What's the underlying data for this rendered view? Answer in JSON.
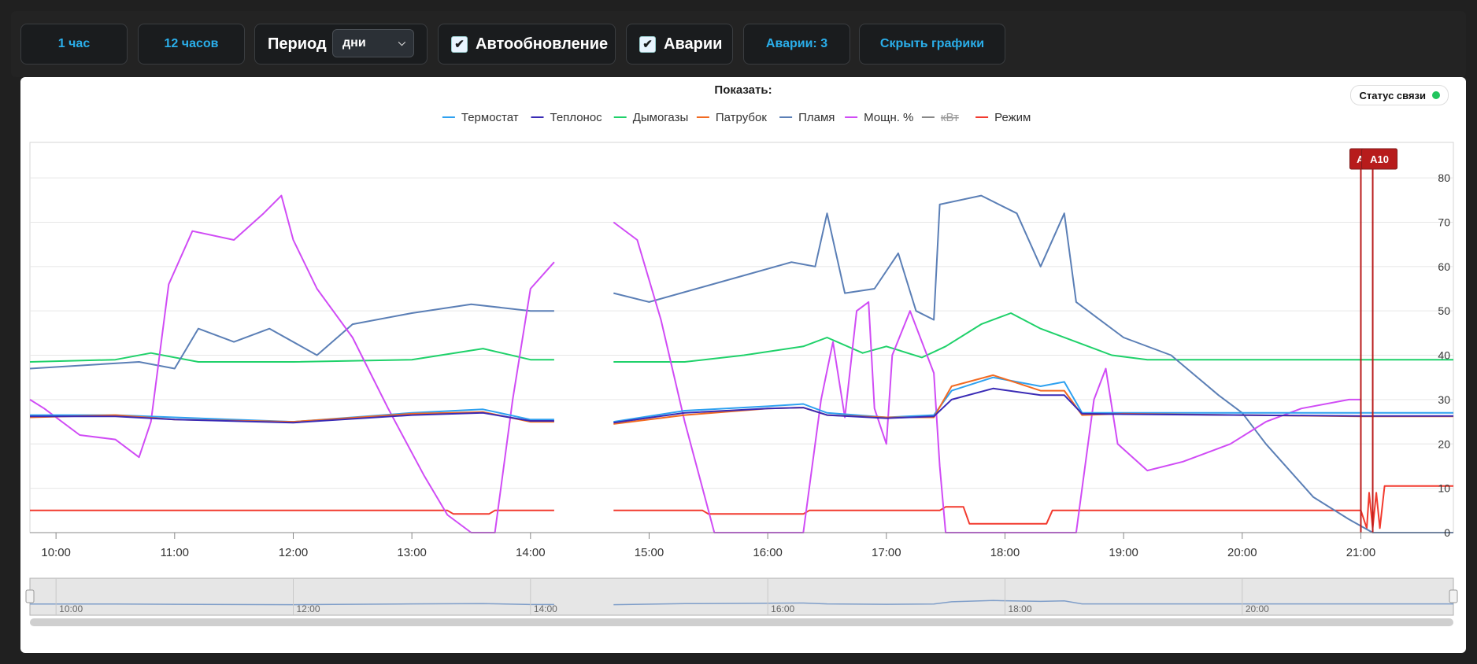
{
  "toolbar": {
    "btn_1h": "1 час",
    "btn_12h": "12 часов",
    "period_label": "Период",
    "period_value": "дни",
    "autoupdate_label": "Автообновление",
    "alarms_label": "Аварии",
    "alarms_count_label": "Аварии: 3",
    "hide_charts_label": "Скрыть графики"
  },
  "panel": {
    "show_label": "Показать:",
    "status_label": "Статус связи",
    "status_color": "#22c55e"
  },
  "chart_data": {
    "type": "line",
    "x_range_hours": [
      9.78,
      21.78
    ],
    "ylim": [
      0,
      88
    ],
    "y_ticks": [
      "0",
      "10",
      "20",
      "30",
      "40",
      "50",
      "60",
      "70",
      "80"
    ],
    "x_ticks": [
      {
        "h": 10,
        "label": "10:00"
      },
      {
        "h": 11,
        "label": "11:00"
      },
      {
        "h": 12,
        "label": "12:00"
      },
      {
        "h": 13,
        "label": "13:00"
      },
      {
        "h": 14,
        "label": "14:00"
      },
      {
        "h": 15,
        "label": "15:00"
      },
      {
        "h": 16,
        "label": "16:00"
      },
      {
        "h": 17,
        "label": "17:00"
      },
      {
        "h": 18,
        "label": "18:00"
      },
      {
        "h": 19,
        "label": "19:00"
      },
      {
        "h": 20,
        "label": "20:00"
      },
      {
        "h": 21,
        "label": "21:00"
      }
    ],
    "navigator_ticks": [
      "10:00",
      "12:00",
      "14:00",
      "16:00",
      "18:00",
      "20:00"
    ],
    "legend_position": "top-center",
    "series": [
      {
        "name": "Термостат",
        "color": "#2ea1f0",
        "hidden": false,
        "points": [
          [
            9.78,
            26.5
          ],
          [
            10.5,
            26.5
          ],
          [
            11,
            26
          ],
          [
            12,
            25
          ],
          [
            13,
            27
          ],
          [
            13.6,
            27.8
          ],
          [
            14,
            25.5
          ],
          [
            14.2,
            25.5
          ],
          null,
          [
            14.7,
            25
          ],
          [
            15.3,
            27.5
          ],
          [
            16,
            28.5
          ],
          [
            16.3,
            29
          ],
          [
            16.5,
            27
          ],
          [
            17,
            26
          ],
          [
            17.4,
            26.5
          ],
          [
            17.55,
            32
          ],
          [
            17.9,
            35
          ],
          [
            18.3,
            33
          ],
          [
            18.5,
            34
          ],
          [
            18.65,
            27
          ],
          [
            19,
            27
          ],
          [
            20,
            27
          ],
          [
            21,
            27
          ],
          [
            21.78,
            27
          ]
        ]
      },
      {
        "name": "Теплонос",
        "color": "#3a2bb5",
        "hidden": false,
        "points": [
          [
            9.78,
            26.2
          ],
          [
            10.5,
            26.2
          ],
          [
            11,
            25.5
          ],
          [
            12,
            24.8
          ],
          [
            13,
            26.5
          ],
          [
            13.6,
            27
          ],
          [
            14,
            25.2
          ],
          [
            14.2,
            25.2
          ],
          null,
          [
            14.7,
            24.8
          ],
          [
            15.3,
            27
          ],
          [
            16,
            28
          ],
          [
            16.3,
            28.2
          ],
          [
            16.5,
            26.5
          ],
          [
            17,
            25.8
          ],
          [
            17.4,
            26.2
          ],
          [
            17.55,
            30
          ],
          [
            17.9,
            32.5
          ],
          [
            18.3,
            31
          ],
          [
            18.5,
            31
          ],
          [
            18.65,
            26.8
          ],
          [
            19,
            26.7
          ],
          [
            20,
            26.5
          ],
          [
            21,
            26.3
          ],
          [
            21.78,
            26.3
          ]
        ]
      },
      {
        "name": "Дымогазы",
        "color": "#1fd16a",
        "hidden": false,
        "points": [
          [
            9.78,
            38.5
          ],
          [
            10.5,
            39
          ],
          [
            10.8,
            40.5
          ],
          [
            11.2,
            38.5
          ],
          [
            12,
            38.5
          ],
          [
            13,
            39
          ],
          [
            13.6,
            41.5
          ],
          [
            14,
            39
          ],
          [
            14.2,
            39
          ],
          null,
          [
            14.7,
            38.5
          ],
          [
            15.3,
            38.5
          ],
          [
            15.8,
            40
          ],
          [
            16.3,
            42
          ],
          [
            16.5,
            44
          ],
          [
            16.8,
            40.5
          ],
          [
            17,
            42
          ],
          [
            17.3,
            39.5
          ],
          [
            17.5,
            42
          ],
          [
            17.8,
            47
          ],
          [
            18.05,
            49.5
          ],
          [
            18.3,
            46
          ],
          [
            18.6,
            43
          ],
          [
            18.9,
            40
          ],
          [
            19.2,
            39
          ],
          [
            20,
            39
          ],
          [
            21,
            39
          ],
          [
            21.78,
            39
          ]
        ]
      },
      {
        "name": "Патрубок",
        "color": "#f26a21",
        "hidden": false,
        "points": [
          [
            9.78,
            26
          ],
          [
            10.5,
            26.5
          ],
          [
            11,
            25.5
          ],
          [
            12,
            25
          ],
          [
            13,
            26.8
          ],
          [
            13.6,
            27.2
          ],
          [
            14,
            25
          ],
          [
            14.2,
            25
          ],
          null,
          [
            14.7,
            24.5
          ],
          [
            15.3,
            26.5
          ],
          [
            16,
            28
          ],
          [
            16.3,
            28.2
          ],
          [
            16.5,
            26.5
          ],
          [
            17,
            26
          ],
          [
            17.4,
            26
          ],
          [
            17.55,
            33
          ],
          [
            17.9,
            35.5
          ],
          [
            18.3,
            32
          ],
          [
            18.5,
            32
          ],
          [
            18.65,
            26.5
          ],
          [
            19,
            26.8
          ],
          [
            20,
            26.5
          ],
          [
            21,
            26.2
          ],
          [
            21.78,
            26.2
          ]
        ]
      },
      {
        "name": "Пламя",
        "color": "#5b7fb6",
        "hidden": false,
        "points": [
          [
            9.78,
            37
          ],
          [
            10.7,
            38.5
          ],
          [
            11,
            37
          ],
          [
            11.2,
            46
          ],
          [
            11.5,
            43
          ],
          [
            11.8,
            46
          ],
          [
            12.2,
            40
          ],
          [
            12.5,
            47
          ],
          [
            13,
            49.5
          ],
          [
            13.5,
            51.5
          ],
          [
            14,
            50
          ],
          [
            14.2,
            50
          ],
          null,
          [
            14.7,
            54
          ],
          [
            15,
            52
          ],
          [
            15.4,
            55
          ],
          [
            15.8,
            58
          ],
          [
            16.2,
            61
          ],
          [
            16.4,
            60
          ],
          [
            16.5,
            72
          ],
          [
            16.65,
            54
          ],
          [
            16.9,
            55
          ],
          [
            17.1,
            63
          ],
          [
            17.25,
            50
          ],
          [
            17.4,
            48
          ],
          [
            17.45,
            74
          ],
          [
            17.8,
            76
          ],
          [
            18.1,
            72
          ],
          [
            18.3,
            60
          ],
          [
            18.5,
            72
          ],
          [
            18.6,
            52
          ],
          [
            19,
            44
          ],
          [
            19.4,
            40
          ],
          [
            19.8,
            31
          ],
          [
            20,
            27
          ],
          [
            20.2,
            20
          ],
          [
            20.6,
            8
          ],
          [
            20.9,
            3
          ],
          [
            21.1,
            0
          ],
          [
            21.78,
            0
          ]
        ]
      },
      {
        "name": "Мощн. %",
        "color": "#d04cf5",
        "hidden": false,
        "points": [
          [
            9.78,
            30
          ],
          [
            9.9,
            28
          ],
          [
            10.2,
            22
          ],
          [
            10.5,
            21
          ],
          [
            10.7,
            17
          ],
          [
            10.8,
            25
          ],
          [
            10.95,
            56
          ],
          [
            11.15,
            68
          ],
          [
            11.5,
            66
          ],
          [
            11.75,
            72
          ],
          [
            11.9,
            76
          ],
          [
            12,
            66
          ],
          [
            12.2,
            55
          ],
          [
            12.5,
            44
          ],
          [
            12.8,
            28
          ],
          [
            13.1,
            13
          ],
          [
            13.3,
            4
          ],
          [
            13.5,
            0
          ],
          [
            13.7,
            0
          ],
          [
            13.85,
            30
          ],
          [
            14.0,
            55
          ],
          [
            14.2,
            61
          ],
          null,
          [
            14.7,
            70
          ],
          [
            14.9,
            66
          ],
          [
            15.1,
            48
          ],
          [
            15.3,
            25
          ],
          [
            15.45,
            10
          ],
          [
            15.55,
            0
          ],
          [
            16.3,
            0
          ],
          [
            16.45,
            30
          ],
          [
            16.55,
            43
          ],
          [
            16.65,
            26
          ],
          [
            16.75,
            50
          ],
          [
            16.85,
            52
          ],
          [
            16.9,
            28
          ],
          [
            17.0,
            20
          ],
          [
            17.05,
            40
          ],
          [
            17.2,
            50
          ],
          [
            17.4,
            36
          ],
          [
            17.45,
            15
          ],
          [
            17.5,
            0
          ],
          [
            18.6,
            0
          ],
          [
            18.75,
            30
          ],
          [
            18.85,
            37
          ],
          [
            18.95,
            20
          ],
          [
            19.2,
            14
          ],
          [
            19.5,
            16
          ],
          [
            19.9,
            20
          ],
          [
            20.2,
            25
          ],
          [
            20.5,
            28
          ],
          [
            20.9,
            30
          ],
          [
            21.0,
            30
          ]
        ]
      },
      {
        "name": "кВт",
        "color": "#888888",
        "hidden": true,
        "points": []
      },
      {
        "name": "Режим",
        "color": "#f23a2e",
        "hidden": false,
        "points": [
          [
            9.78,
            5
          ],
          [
            13.3,
            5
          ],
          [
            13.35,
            4.2
          ],
          [
            13.65,
            4.2
          ],
          [
            13.7,
            5
          ],
          [
            14.2,
            5
          ],
          null,
          [
            14.7,
            5
          ],
          [
            15.45,
            5
          ],
          [
            15.5,
            4.2
          ],
          [
            16.3,
            4.2
          ],
          [
            16.35,
            5
          ],
          [
            17.45,
            5
          ],
          [
            17.5,
            5.8
          ],
          [
            17.65,
            5.8
          ],
          [
            17.7,
            2
          ],
          [
            18.35,
            2
          ],
          [
            18.4,
            5
          ],
          [
            21.0,
            5
          ],
          [
            21.05,
            1
          ],
          [
            21.07,
            9
          ],
          [
            21.1,
            1
          ],
          [
            21.13,
            9
          ],
          [
            21.16,
            1
          ],
          [
            21.2,
            10.5
          ],
          [
            21.78,
            10.5
          ]
        ]
      }
    ],
    "alarms": [
      {
        "label": "A9",
        "hour": 21.0
      },
      {
        "label": "A10",
        "hour": 21.1
      }
    ]
  }
}
